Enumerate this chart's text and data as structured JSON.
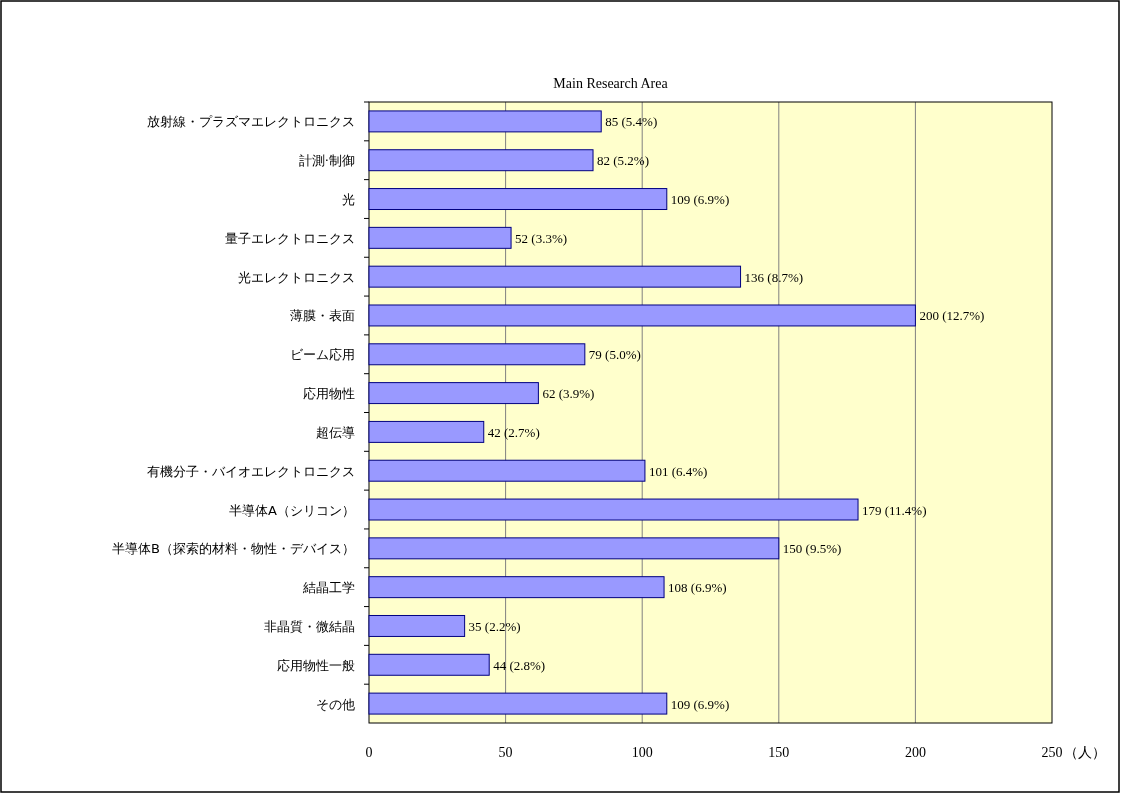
{
  "chart_data": {
    "type": "bar",
    "orientation": "horizontal",
    "title": "Main Research Area",
    "categories": [
      "放射線・プラズマエレクトロニクス",
      "計測·制御",
      "光",
      "量子エレクトロニクス",
      "光エレクトロニクス",
      "薄膜・表面",
      "ビーム応用",
      "応用物性",
      "超伝導",
      "有機分子・バイオエレクトロニクス",
      "半導体A（シリコン）",
      "半導体B（探索的材料・物性・デバイス）",
      "結晶工学",
      "非晶質・微結晶",
      "応用物性一般",
      "その他"
    ],
    "values": [
      85,
      82,
      109,
      52,
      136,
      200,
      79,
      62,
      42,
      101,
      179,
      150,
      108,
      35,
      44,
      109
    ],
    "value_labels": [
      "85 (5.4%)",
      "82 (5.2%)",
      "109 (6.9%)",
      "52 (3.3%)",
      "136 (8.7%)",
      "200 (12.7%)",
      "79 (5.0%)",
      "62 (3.9%)",
      "42 (2.7%)",
      "101 (6.4%)",
      "179 (11.4%)",
      "150 (9.5%)",
      "108 (6.9%)",
      "35 (2.2%)",
      "44 (2.8%)",
      "109 (6.9%)"
    ],
    "color": "#9999ff",
    "xlim": [
      0,
      250
    ],
    "xticks": [
      0,
      50,
      100,
      150,
      200,
      250
    ],
    "xlabel": "（人）",
    "grid": "x"
  }
}
